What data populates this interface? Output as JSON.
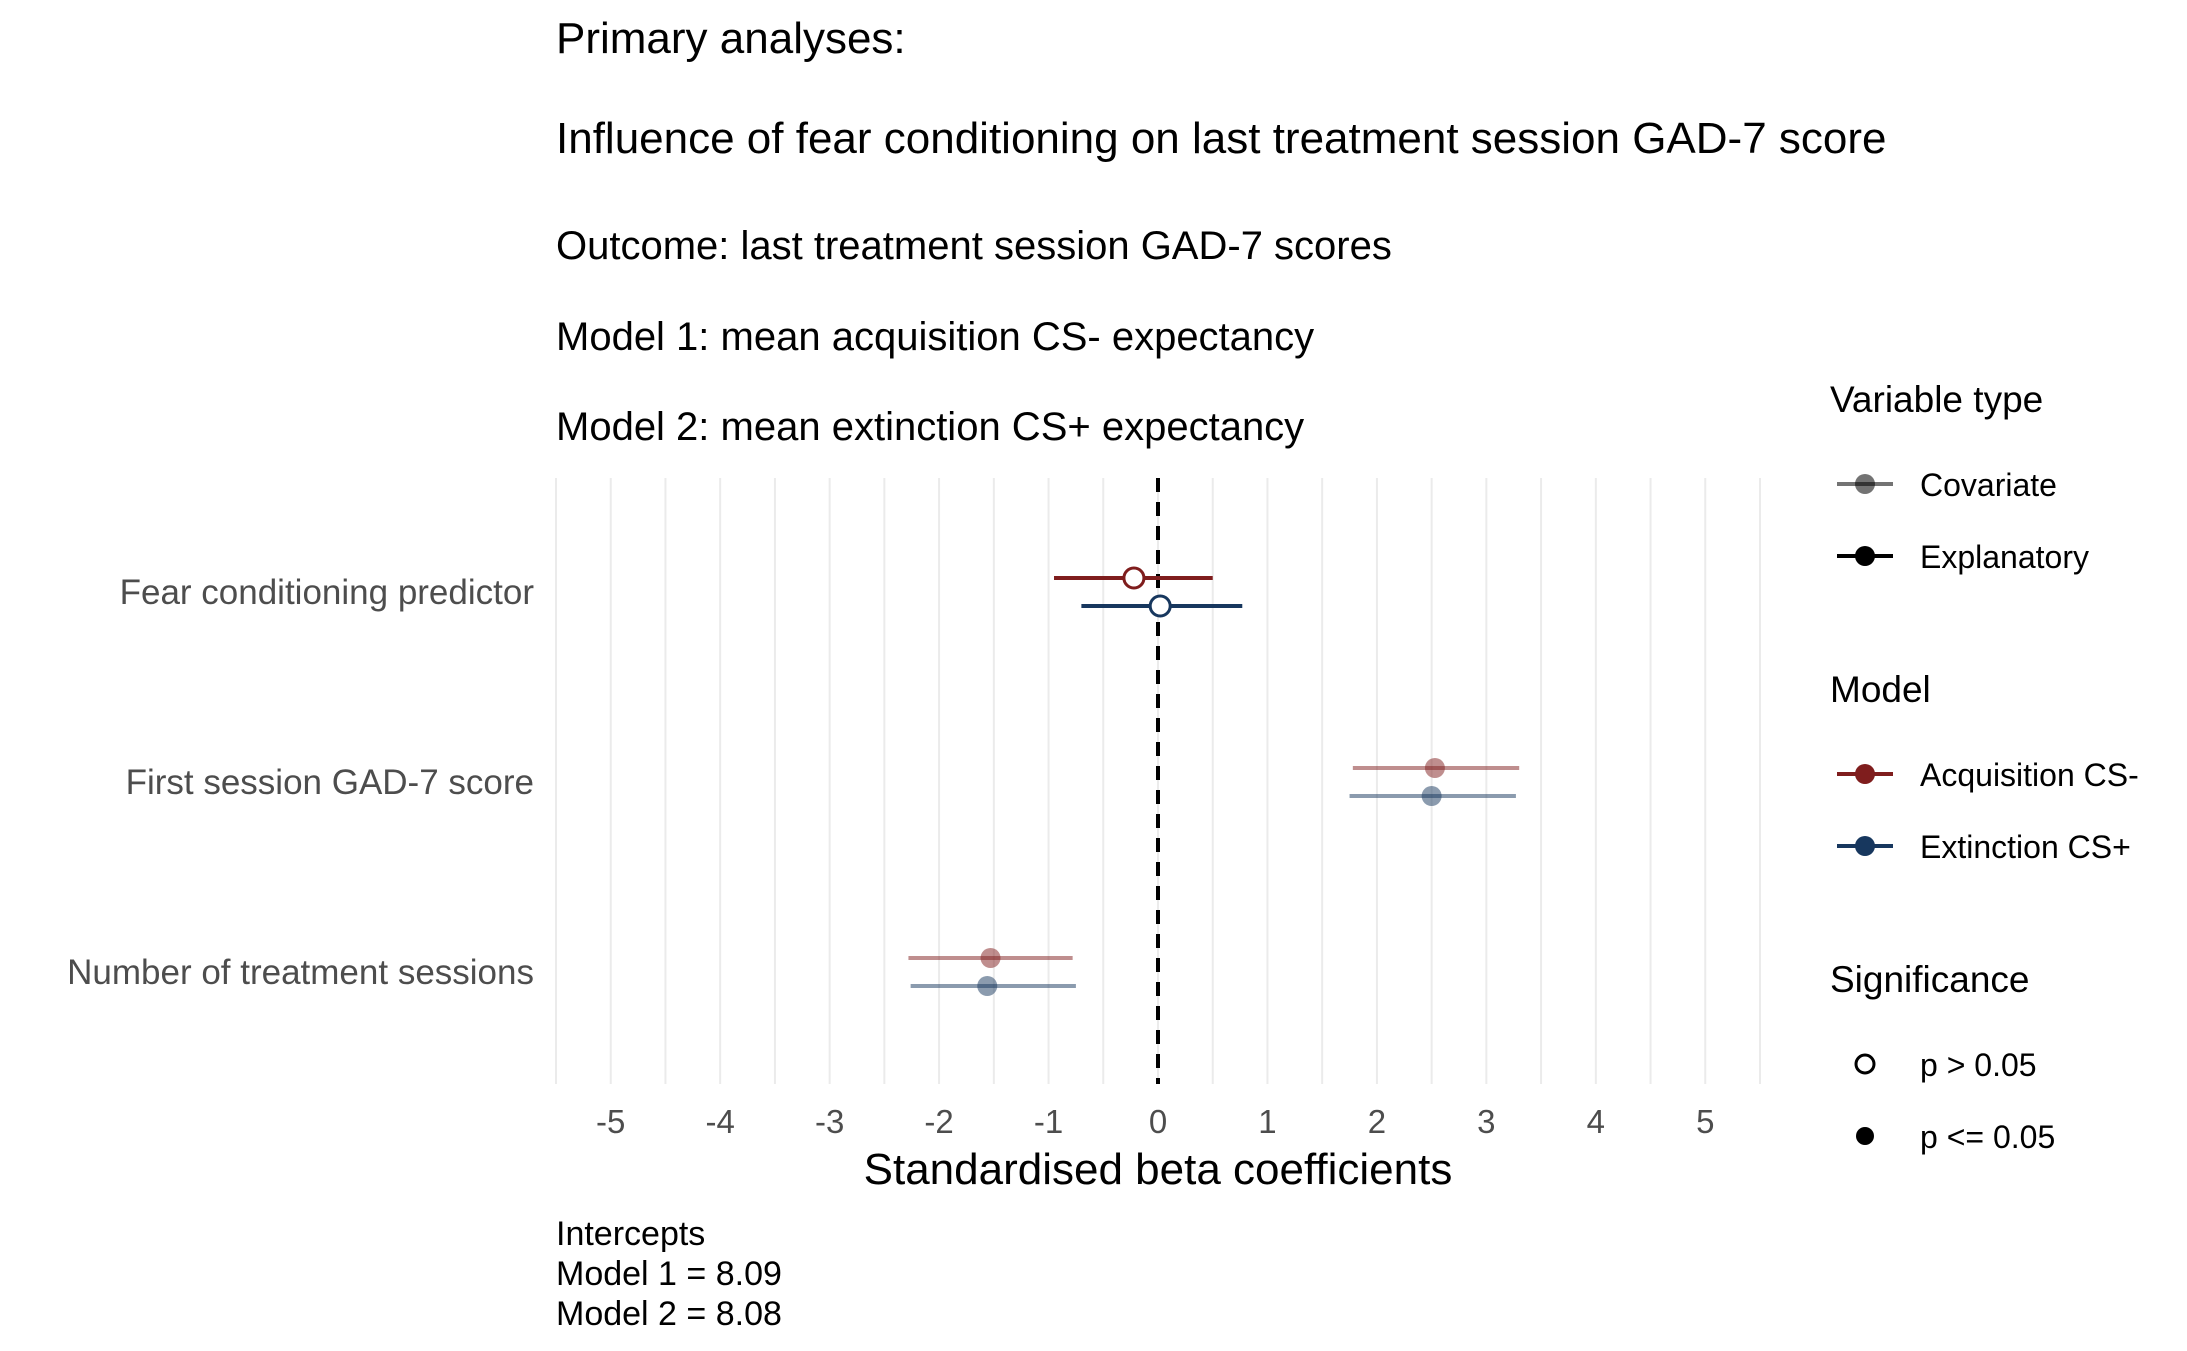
{
  "title": "Primary analyses:",
  "subtitle": "Influence of fear conditioning on last treatment session GAD-7 score",
  "description_lines": [
    "Outcome: last treatment session GAD-7 scores",
    "Model 1: mean acquisition CS- expectancy",
    "Model 2: mean extinction CS+ expectancy"
  ],
  "caption_lines": [
    "Intercepts",
    "Model 1 = 8.09",
    "Model 2 = 8.08"
  ],
  "colors": {
    "acquisition": "#7f1d1d",
    "extinction": "#17375e",
    "grid": "#ebebeb",
    "axis_text": "#4d4d4d"
  },
  "chart_data": {
    "type": "scatter",
    "subtype": "coefficient-forest-plot",
    "xlabel": "Standardised beta coefficients",
    "ylabel": "",
    "xlim": [
      -5.5,
      5.5
    ],
    "x_ticks": [
      -5,
      -4,
      -3,
      -2,
      -1,
      0,
      1,
      2,
      3,
      4,
      5
    ],
    "x_tick_labels": [
      "-5",
      "-4",
      "-3",
      "-2",
      "-1",
      "0",
      "1",
      "2",
      "3",
      "4",
      "5"
    ],
    "reference_line_x": 0,
    "grid": true,
    "categories": [
      "Fear conditioning predictor",
      "First session GAD-7 score",
      "Number of treatment sessions"
    ],
    "series": [
      {
        "name": "Acquisition CS-",
        "color": "#7f1d1d",
        "points": [
          {
            "category": "Fear conditioning predictor",
            "estimate": -0.22,
            "ci": [
              -0.95,
              0.5
            ],
            "variable_type": "Explanatory",
            "significant": false
          },
          {
            "category": "First session GAD-7 score",
            "estimate": 2.53,
            "ci": [
              1.78,
              3.3
            ],
            "variable_type": "Covariate",
            "significant": true
          },
          {
            "category": "Number of treatment sessions",
            "estimate": -1.53,
            "ci": [
              -2.28,
              -0.78
            ],
            "variable_type": "Covariate",
            "significant": true
          }
        ]
      },
      {
        "name": "Extinction CS+",
        "color": "#17375e",
        "points": [
          {
            "category": "Fear conditioning predictor",
            "estimate": 0.02,
            "ci": [
              -0.7,
              0.77
            ],
            "variable_type": "Explanatory",
            "significant": false
          },
          {
            "category": "First session GAD-7 score",
            "estimate": 2.5,
            "ci": [
              1.75,
              3.27
            ],
            "variable_type": "Covariate",
            "significant": true
          },
          {
            "category": "Number of treatment sessions",
            "estimate": -1.56,
            "ci": [
              -2.26,
              -0.75
            ],
            "variable_type": "Covariate",
            "significant": true
          }
        ]
      }
    ],
    "legend": {
      "placement": "right",
      "groups": [
        {
          "title": "Variable type",
          "items": [
            {
              "label": "Covariate",
              "style": "covariate"
            },
            {
              "label": "Explanatory",
              "style": "explanatory"
            }
          ]
        },
        {
          "title": "Model",
          "items": [
            {
              "label": "Acquisition CS-",
              "style": "acquisition"
            },
            {
              "label": "Extinction CS+",
              "style": "extinction"
            }
          ]
        },
        {
          "title": "Significance",
          "items": [
            {
              "label": "p > 0.05",
              "style": "open"
            },
            {
              "label": "p <= 0.05",
              "style": "filled"
            }
          ]
        }
      ]
    }
  }
}
